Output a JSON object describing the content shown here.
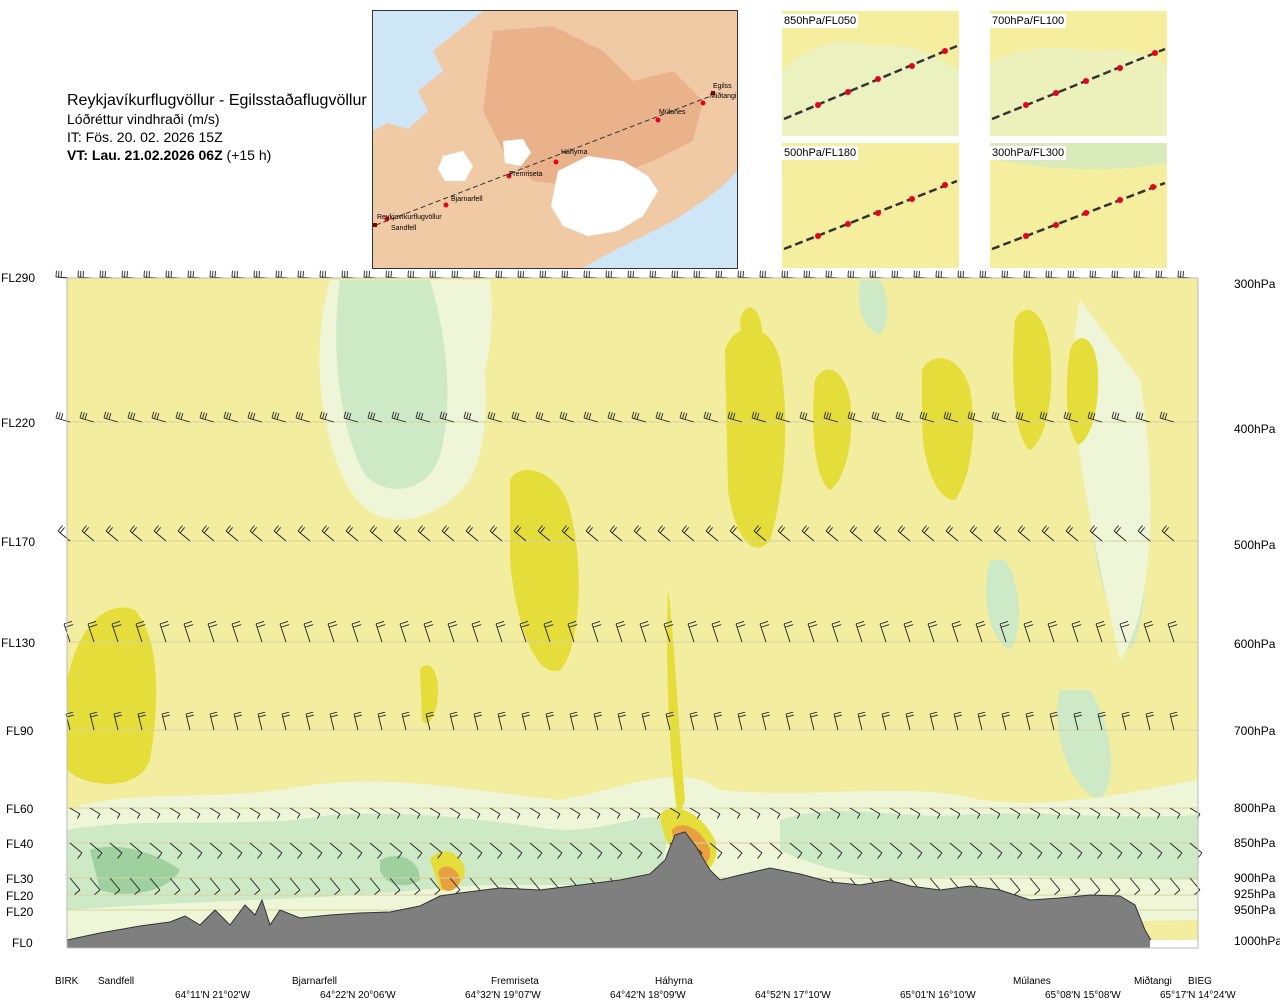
{
  "title": {
    "route": "Reykjavíkurflugvöllur - Egilsstaðaflugvöllur",
    "variable": "Lóðréttur vindhraði (m/s)",
    "issue_time": "IT: Fös. 20. 02. 2026 15Z",
    "valid_time": "VT: Lau. 21.02.2026 06Z",
    "lead": "(+15 h)"
  },
  "map": {
    "places": [
      "Reykjavíkurflugvöllur",
      "Sandfell",
      "Bjarnarfell",
      "Fremriseta",
      "Háhyrna",
      "Múlanes",
      "Miðtangi",
      "Egilss"
    ]
  },
  "mini_maps": [
    {
      "label": "850hPa/FL050"
    },
    {
      "label": "700hPa/FL100"
    },
    {
      "label": "500hPa/FL180"
    },
    {
      "label": "300hPa/FL300"
    }
  ],
  "left_levels": [
    "FL290",
    "FL220",
    "FL170",
    "FL130",
    "FL90",
    "FL60",
    "FL40",
    "FL30",
    "FL20",
    "FL20",
    "FL0"
  ],
  "right_levels": [
    "300hPa",
    "400hPa",
    "500hPa",
    "600hPa",
    "700hPa",
    "800hPa",
    "850hPa",
    "900hPa",
    "925hPa",
    "950hPa",
    "1000hPa"
  ],
  "waypoints": [
    "BIRK",
    "Sandfell",
    "Bjarnarfell",
    "Fremriseta",
    "Háhyrna",
    "Múlanes",
    "Miðtangi",
    "BIEG"
  ],
  "coords": [
    "64°11'N 21°02'W",
    "64°22'N 20°06'W",
    "64°32'N 19°07'W",
    "64°42'N 18°09'W",
    "64°52'N 17°10'W",
    "65°01'N 16°10'W",
    "65°08'N 15°08'W",
    "65°17'N 14°24'W"
  ],
  "colors": {
    "background_field": "#f3ed9f",
    "updraft": "#e4dd3a",
    "strong_updraft": "#e9a040",
    "downdraft_light": "#eff6d8",
    "downdraft": "#cde9c6",
    "strong_downdraft": "#9fd0a0",
    "terrain": "#7f7f7f",
    "land": "#f0c9a5",
    "sea": "#cfe6f6",
    "glacier": "#ffffff",
    "route_point": "#e8001c"
  }
}
